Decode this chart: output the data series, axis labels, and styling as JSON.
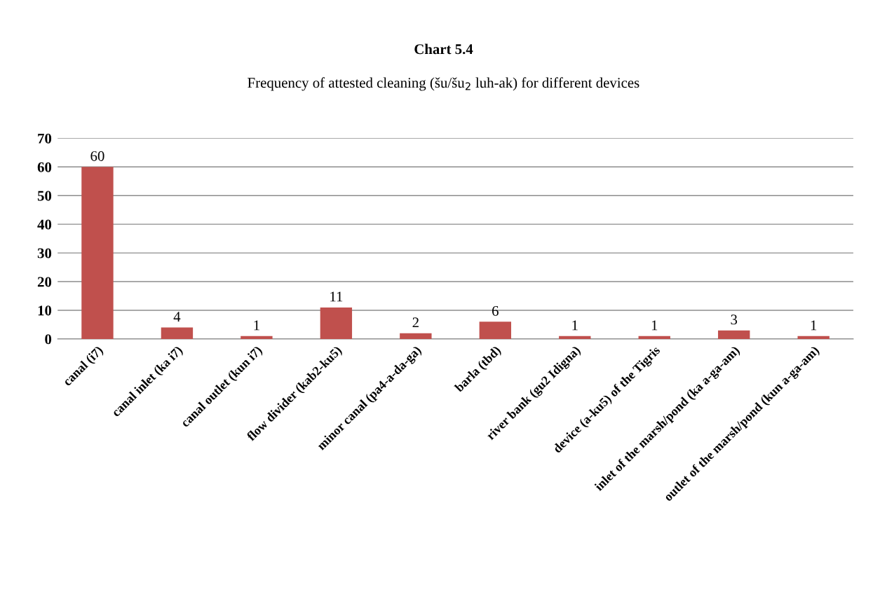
{
  "chart_data": {
    "type": "bar",
    "title": "Chart 5.4",
    "subtitle": "Frequency of attested cleaning (šu/šu$_{2}$ luh-ak) for different devices",
    "categories": [
      "canal (i7)",
      "canal inlet (ka i7)",
      "canal outlet (kun i7)",
      "flow divider (kab2-ku5)",
      "minor canal (pa4-a-da-ga)",
      "barla (tbd)",
      "river bank (gu2 Idigna)",
      "device (a-ku5) of the Tigris",
      "inlet of the marsh/pond (ka a-ga-am)",
      "outlet of the marsh/pond (kun a-ga-am)"
    ],
    "values": [
      60,
      4,
      1,
      11,
      2,
      6,
      1,
      1,
      3,
      1
    ],
    "color": "#c0504d",
    "ylim": [
      0,
      70
    ],
    "yticks": [
      0,
      10,
      20,
      30,
      40,
      50,
      60,
      70
    ],
    "grid": "y",
    "data_labels": true,
    "legend": false
  }
}
